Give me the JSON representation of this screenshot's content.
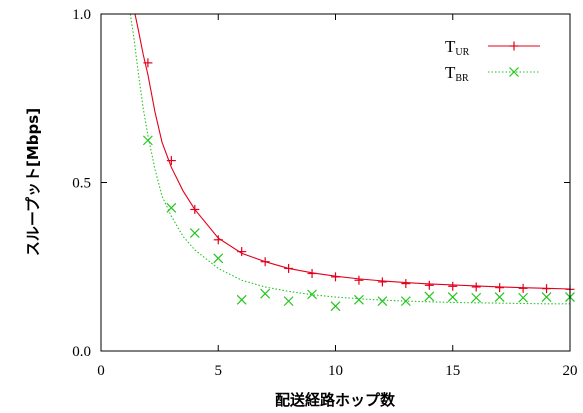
{
  "chart_data": {
    "type": "line",
    "xlabel": "配送経路ホップ数",
    "ylabel": "スループット[Mbps]",
    "xlim": [
      0,
      20
    ],
    "ylim": [
      0.0,
      1.0
    ],
    "x_ticks": [
      "0",
      "5",
      "10",
      "15",
      "20"
    ],
    "y_ticks": [
      "0.0",
      "0.5",
      "1.0"
    ],
    "grid": false,
    "legend_position": "top-right",
    "series": [
      {
        "name": "T",
        "name_subscript": "UR",
        "color": "#e3001b",
        "marker": "plus",
        "curve": "solid",
        "curve_x": [
          1.45,
          1.6,
          1.8,
          2,
          2.3,
          2.6,
          3,
          3.5,
          4,
          5,
          6,
          7,
          8,
          9,
          10,
          11,
          12,
          13,
          14,
          15,
          16,
          17,
          18,
          19,
          20
        ],
        "curve_y": [
          1.0,
          0.95,
          0.88,
          0.82,
          0.71,
          0.62,
          0.545,
          0.475,
          0.42,
          0.335,
          0.29,
          0.265,
          0.245,
          0.232,
          0.222,
          0.214,
          0.208,
          0.203,
          0.199,
          0.196,
          0.193,
          0.19,
          0.188,
          0.186,
          0.184
        ],
        "points": [
          {
            "x": 2,
            "y": 0.855
          },
          {
            "x": 3,
            "y": 0.565
          },
          {
            "x": 4,
            "y": 0.42
          },
          {
            "x": 5,
            "y": 0.33
          },
          {
            "x": 6,
            "y": 0.295
          },
          {
            "x": 7,
            "y": 0.265
          },
          {
            "x": 8,
            "y": 0.245
          },
          {
            "x": 9,
            "y": 0.23
          },
          {
            "x": 10,
            "y": 0.22
          },
          {
            "x": 11,
            "y": 0.21
          },
          {
            "x": 12,
            "y": 0.205
          },
          {
            "x": 13,
            "y": 0.2
          },
          {
            "x": 14,
            "y": 0.195
          },
          {
            "x": 15,
            "y": 0.192
          },
          {
            "x": 16,
            "y": 0.19
          },
          {
            "x": 17,
            "y": 0.188
          },
          {
            "x": 18,
            "y": 0.186
          },
          {
            "x": 19,
            "y": 0.185
          },
          {
            "x": 20,
            "y": 0.183
          }
        ]
      },
      {
        "name": "T",
        "name_subscript": "BR",
        "color": "#22c51e",
        "marker": "cross",
        "curve": "dotted",
        "curve_x": [
          1.25,
          1.4,
          1.6,
          1.8,
          2,
          2.3,
          2.6,
          3,
          3.5,
          4,
          5,
          6,
          7,
          8,
          9,
          10,
          11,
          12,
          13,
          14,
          15,
          16,
          17,
          18,
          19,
          20
        ],
        "curve_y": [
          1.0,
          0.93,
          0.82,
          0.72,
          0.64,
          0.54,
          0.46,
          0.4,
          0.34,
          0.3,
          0.245,
          0.21,
          0.19,
          0.177,
          0.167,
          0.16,
          0.155,
          0.151,
          0.148,
          0.146,
          0.144,
          0.143,
          0.142,
          0.141,
          0.14,
          0.14
        ],
        "points": [
          {
            "x": 2,
            "y": 0.625
          },
          {
            "x": 3,
            "y": 0.425
          },
          {
            "x": 4,
            "y": 0.35
          },
          {
            "x": 5,
            "y": 0.275
          },
          {
            "x": 6,
            "y": 0.152
          },
          {
            "x": 7,
            "y": 0.17
          },
          {
            "x": 8,
            "y": 0.148
          },
          {
            "x": 9,
            "y": 0.168
          },
          {
            "x": 10,
            "y": 0.133
          },
          {
            "x": 11,
            "y": 0.152
          },
          {
            "x": 12,
            "y": 0.148
          },
          {
            "x": 13,
            "y": 0.148
          },
          {
            "x": 14,
            "y": 0.162
          },
          {
            "x": 15,
            "y": 0.16
          },
          {
            "x": 16,
            "y": 0.158
          },
          {
            "x": 17,
            "y": 0.16
          },
          {
            "x": 18,
            "y": 0.158
          },
          {
            "x": 19,
            "y": 0.16
          },
          {
            "x": 20,
            "y": 0.16
          }
        ]
      }
    ]
  }
}
